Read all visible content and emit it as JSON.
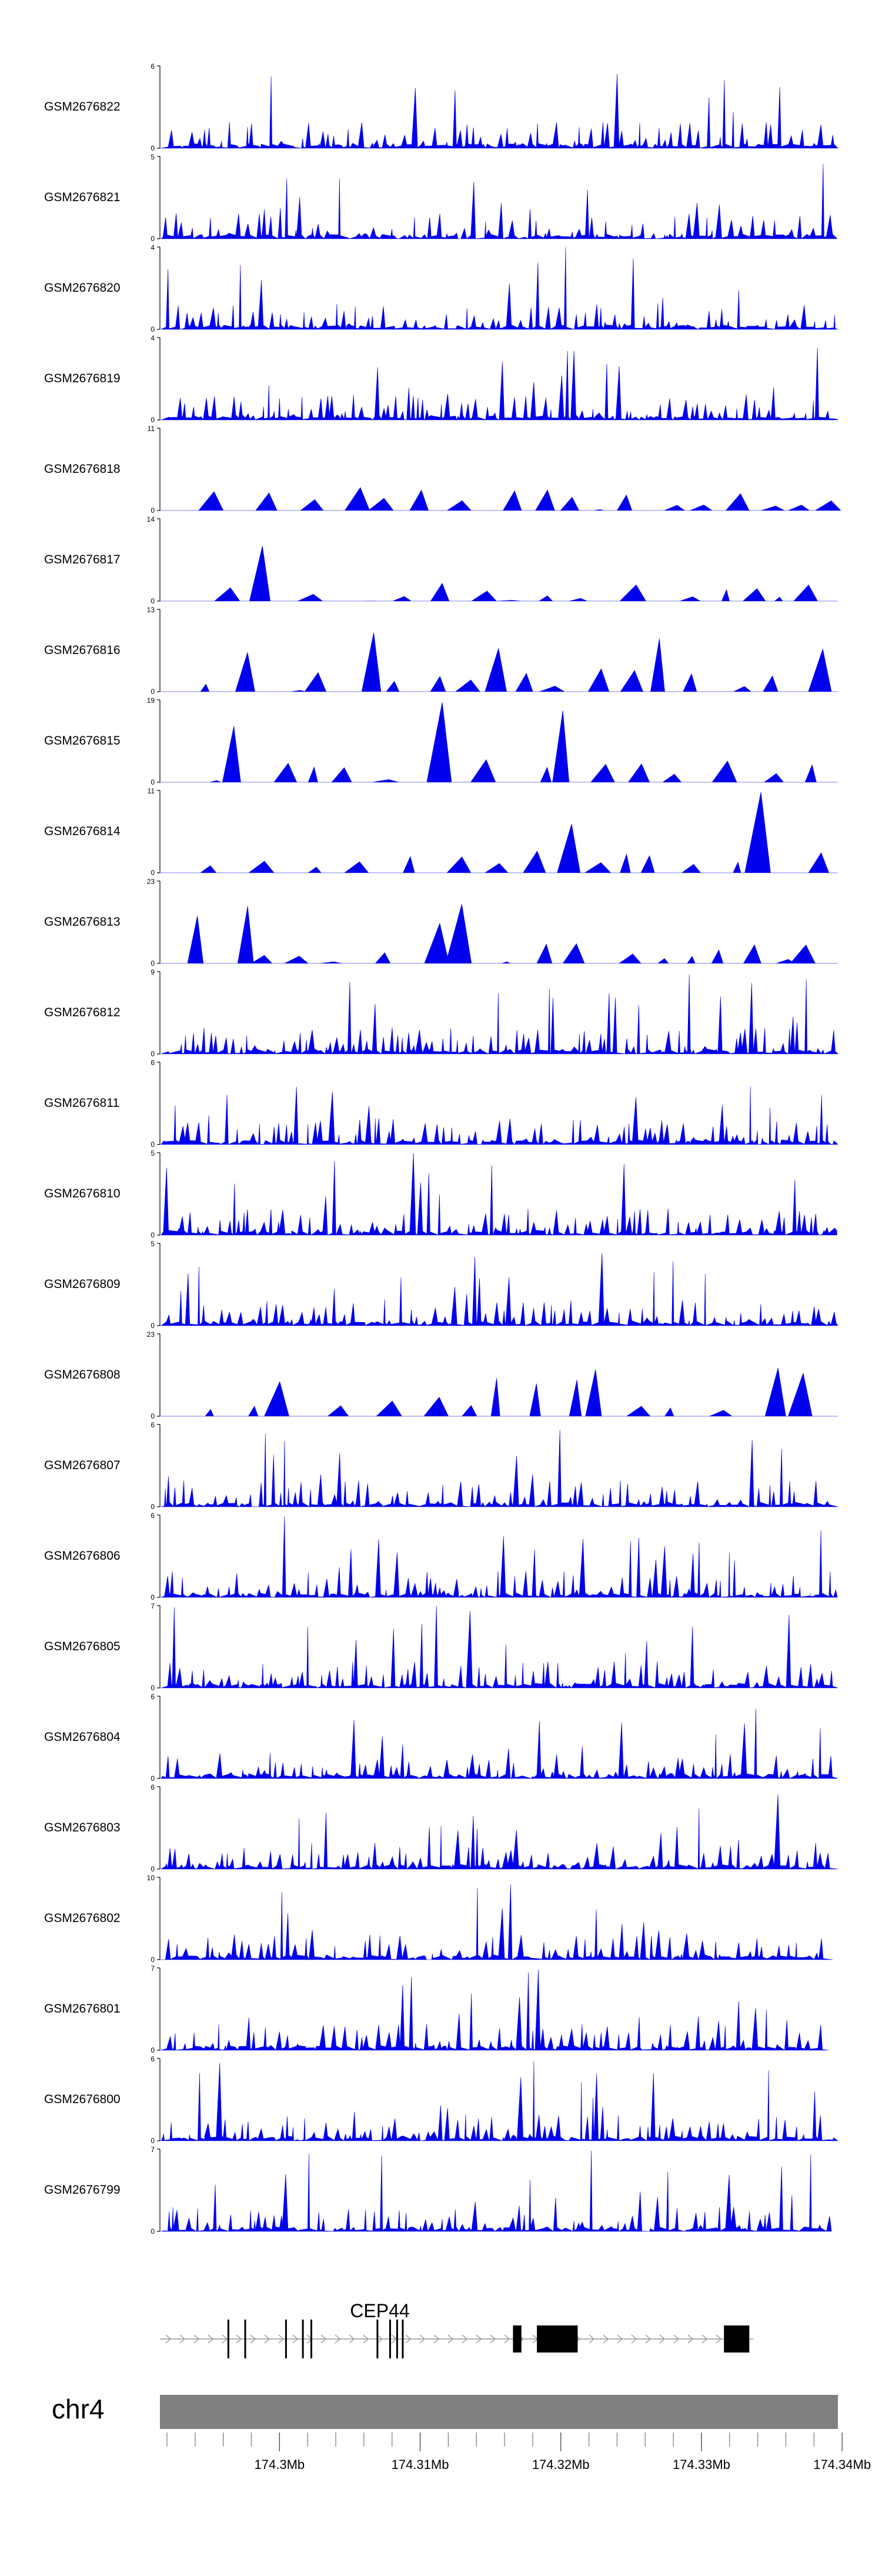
{
  "chart_data": {
    "type": "area",
    "title": "",
    "fill_color": "#0000ee",
    "axis_color": "#000000",
    "x_range_mb": [
      174.2915,
      174.3397
    ],
    "tracks": [
      {
        "name": "GSM2676822",
        "ymax": 6,
        "ymin": 0
      },
      {
        "name": "GSM2676821",
        "ymax": 5,
        "ymin": 0
      },
      {
        "name": "GSM2676820",
        "ymax": 4,
        "ymin": 0
      },
      {
        "name": "GSM2676819",
        "ymax": 4,
        "ymin": 0
      },
      {
        "name": "GSM2676818",
        "ymax": 11,
        "ymin": 0
      },
      {
        "name": "GSM2676817",
        "ymax": 14,
        "ymin": 0
      },
      {
        "name": "GSM2676816",
        "ymax": 13,
        "ymin": 0
      },
      {
        "name": "GSM2676815",
        "ymax": 19,
        "ymin": 0
      },
      {
        "name": "GSM2676814",
        "ymax": 11,
        "ymin": 0
      },
      {
        "name": "GSM2676813",
        "ymax": 23,
        "ymin": 0
      },
      {
        "name": "GSM2676812",
        "ymax": 9,
        "ymin": 0
      },
      {
        "name": "GSM2676811",
        "ymax": 6,
        "ymin": 0
      },
      {
        "name": "GSM2676810",
        "ymax": 5,
        "ymin": 0
      },
      {
        "name": "GSM2676809",
        "ymax": 5,
        "ymin": 0
      },
      {
        "name": "GSM2676808",
        "ymax": 23,
        "ymin": 0
      },
      {
        "name": "GSM2676807",
        "ymax": 6,
        "ymin": 0
      },
      {
        "name": "GSM2676806",
        "ymax": 6,
        "ymin": 0
      },
      {
        "name": "GSM2676805",
        "ymax": 7,
        "ymin": 0
      },
      {
        "name": "GSM2676804",
        "ymax": 6,
        "ymin": 0
      },
      {
        "name": "GSM2676803",
        "ymax": 6,
        "ymin": 0
      },
      {
        "name": "GSM2676802",
        "ymax": 10,
        "ymin": 0
      },
      {
        "name": "GSM2676801",
        "ymax": 7,
        "ymin": 0
      },
      {
        "name": "GSM2676800",
        "ymax": 6,
        "ymin": 0
      },
      {
        "name": "GSM2676799",
        "ymax": 7,
        "ymin": 0
      }
    ],
    "gene": {
      "name": "CEP44",
      "strand": "+",
      "start_mb": 174.2915,
      "end_mb": 174.3337,
      "exons_mb": [
        [
          174.2963,
          174.2964
        ],
        [
          174.2975,
          174.2976
        ],
        [
          174.3004,
          174.3005
        ],
        [
          174.3016,
          174.3017
        ],
        [
          174.3022,
          174.3023
        ],
        [
          174.3069,
          174.307
        ],
        [
          174.3078,
          174.3079
        ],
        [
          174.3083,
          174.3084
        ],
        [
          174.3087,
          174.3088
        ],
        [
          174.3166,
          174.3172
        ],
        [
          174.3183,
          174.3212
        ],
        [
          174.3316,
          174.3334
        ]
      ]
    },
    "chromosome": "chr4",
    "x_ticks": [
      {
        "value": 174.3,
        "label": "174.3Mb"
      },
      {
        "value": 174.31,
        "label": "174.31Mb"
      },
      {
        "value": 174.32,
        "label": "174.32Mb"
      },
      {
        "value": 174.33,
        "label": "174.33Mb"
      },
      {
        "value": 174.34,
        "label": "174.34Mb"
      }
    ],
    "x_minor_tick_step_mb": 0.002
  }
}
